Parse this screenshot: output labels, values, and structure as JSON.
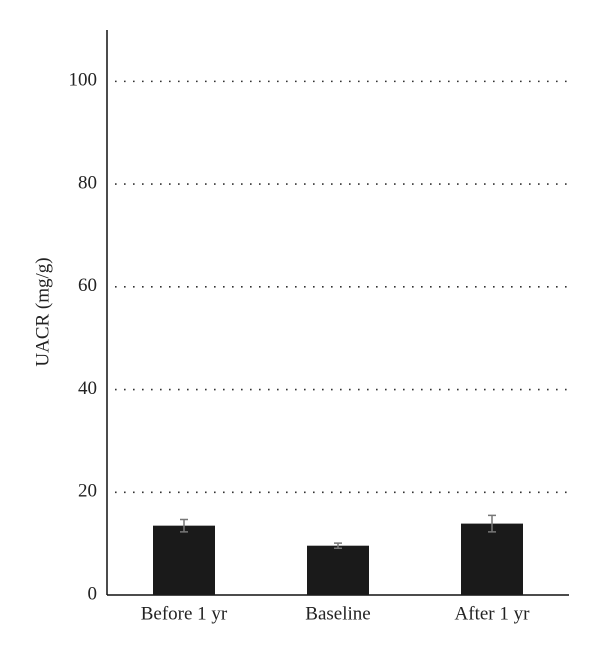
{
  "chart_data": {
    "type": "bar",
    "y_label": "UACR (mg/g)",
    "categories": [
      "Before 1 yr",
      "Baseline",
      "After 1 yr"
    ],
    "values": [
      13.5,
      9.6,
      13.9
    ],
    "errors": [
      1.2,
      0.5,
      1.6
    ],
    "color": "#1a1a1a",
    "error_color": "#777777",
    "ylim": [
      0,
      110
    ],
    "yticks": [
      0,
      20,
      40,
      60,
      80,
      100
    ],
    "grid": true
  }
}
